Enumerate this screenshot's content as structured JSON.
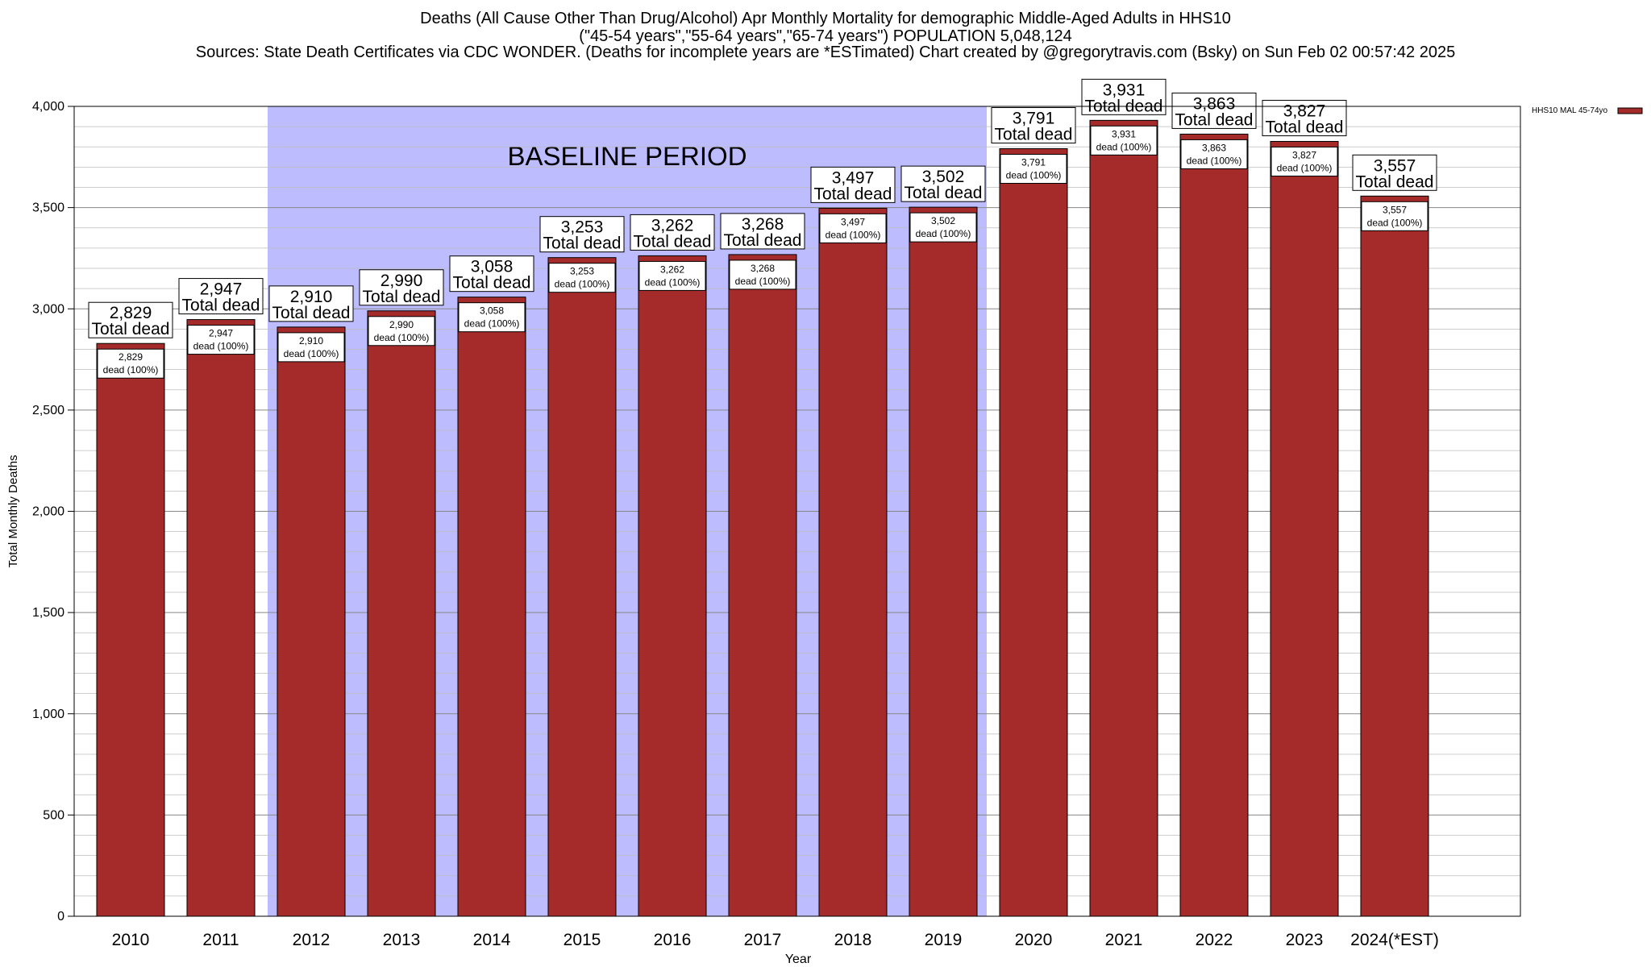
{
  "header": {
    "title_line1": "Deaths (All Cause Other Than Drug/Alcohol) Apr Monthly Mortality for demographic Middle-Aged Adults in HHS10",
    "title_line2": "(\"45-54 years\",\"55-64 years\",\"65-74 years\") POPULATION 5,048,124",
    "title_line3": "Sources: State Death Certificates via CDC WONDER. (Deaths for incomplete years are *ESTimated)               Chart created by @gregorytravis.com (Bsky) on Sun Feb 02 00:57:42 2025"
  },
  "chart_data": {
    "type": "bar",
    "xlabel": "Year",
    "ylabel": "Total Monthly Deaths",
    "ylim": [
      0,
      4000
    ],
    "y_ticks": [
      0,
      500,
      1000,
      1500,
      2000,
      2500,
      3000,
      3500,
      4000
    ],
    "y_tick_labels": [
      "0",
      "500",
      "1,000",
      "1,500",
      "2,000",
      "2,500",
      "3,000",
      "3,500",
      "4,000"
    ],
    "categories": [
      "2010",
      "2011",
      "2012",
      "2013",
      "2014",
      "2015",
      "2016",
      "2017",
      "2018",
      "2019",
      "2020",
      "2021",
      "2022",
      "2023",
      "2024(*EST)"
    ],
    "series": [
      {
        "name": "HHS10 MAL 45-74yo",
        "color": "#a52a2a",
        "values": [
          2829,
          2947,
          2910,
          2990,
          3058,
          3253,
          3262,
          3268,
          3497,
          3502,
          3791,
          3931,
          3863,
          3827,
          3557
        ]
      }
    ],
    "value_labels": [
      "2,829",
      "2,947",
      "2,910",
      "2,990",
      "3,058",
      "3,253",
      "3,262",
      "3,268",
      "3,497",
      "3,502",
      "3,791",
      "3,931",
      "3,863",
      "3,827",
      "3,557"
    ],
    "label_top_text": "Total dead",
    "label_inner_text": "dead (100%)",
    "baseline_period": {
      "label": "BASELINE PERIOD",
      "from": "2012",
      "to": "2019",
      "color": "#bcbcff"
    },
    "grid": true,
    "legend_position": "top-right"
  }
}
